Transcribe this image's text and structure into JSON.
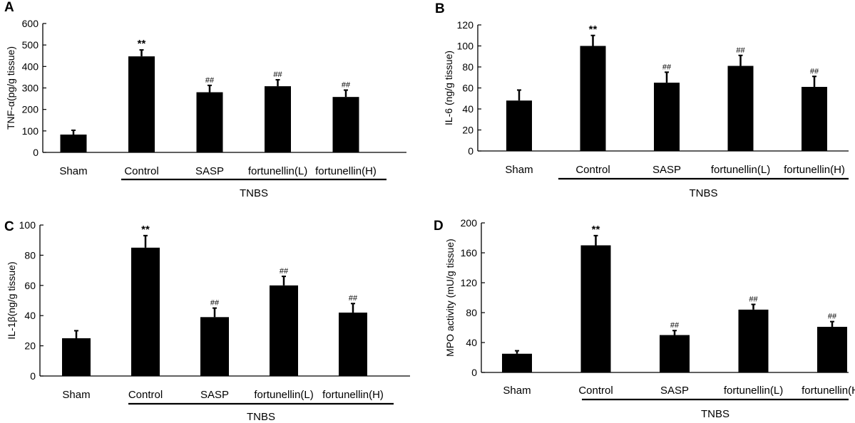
{
  "chart_data": [
    {
      "panel": "A",
      "type": "bar",
      "ylabel": "TNF-α(pg/g tissue)",
      "ylim": [
        0,
        600
      ],
      "yticks": [
        0,
        100,
        200,
        300,
        400,
        500,
        600
      ],
      "categories": [
        "Sham",
        "Control",
        "SASP",
        "fortunellin(L)",
        "fortunellin(H)"
      ],
      "values": [
        83,
        447,
        280,
        308,
        258
      ],
      "errors": [
        20,
        30,
        32,
        30,
        32
      ],
      "annotations": [
        "",
        "**",
        "##",
        "##",
        "##"
      ],
      "group_label": "TNBS",
      "bar_color": "#000000"
    },
    {
      "panel": "B",
      "type": "bar",
      "ylabel": "IL-6 (ng/g tissue)",
      "ylim": [
        0,
        120
      ],
      "yticks": [
        0,
        20,
        40,
        60,
        80,
        100,
        120
      ],
      "categories": [
        "Sham",
        "Control",
        "SASP",
        "fortunellin(L)",
        "fortunellin(H)"
      ],
      "values": [
        48,
        100,
        65,
        81,
        61
      ],
      "errors": [
        10,
        10,
        10,
        10,
        10
      ],
      "annotations": [
        "",
        "**",
        "##",
        "##",
        "##"
      ],
      "group_label": "TNBS",
      "bar_color": "#000000"
    },
    {
      "panel": "C",
      "type": "bar",
      "ylabel": "IL-1β(ng/g tissue)",
      "ylim": [
        0,
        100
      ],
      "yticks": [
        0,
        20,
        40,
        60,
        80,
        100
      ],
      "categories": [
        "Sham",
        "Control",
        "SASP",
        "fortunellin(L)",
        "fortunellin(H)"
      ],
      "values": [
        25,
        85,
        39,
        60,
        42
      ],
      "errors": [
        5,
        8,
        6,
        6,
        6
      ],
      "annotations": [
        "",
        "**",
        "##",
        "##",
        "##"
      ],
      "group_label": "TNBS",
      "bar_color": "#000000"
    },
    {
      "panel": "D",
      "type": "bar",
      "ylabel": "MPO activity (mU/g tissue)",
      "ylim": [
        0,
        200
      ],
      "yticks": [
        0,
        40,
        80,
        120,
        160,
        200
      ],
      "categories": [
        "Sham",
        "Control",
        "SASP",
        "fortunellin(L)",
        "fortunellin(H)"
      ],
      "values": [
        25,
        170,
        50,
        84,
        61
      ],
      "errors": [
        4,
        13,
        6,
        7,
        7
      ],
      "annotations": [
        "",
        "**",
        "##",
        "##",
        "##"
      ],
      "group_label": "TNBS",
      "bar_color": "#000000"
    }
  ]
}
